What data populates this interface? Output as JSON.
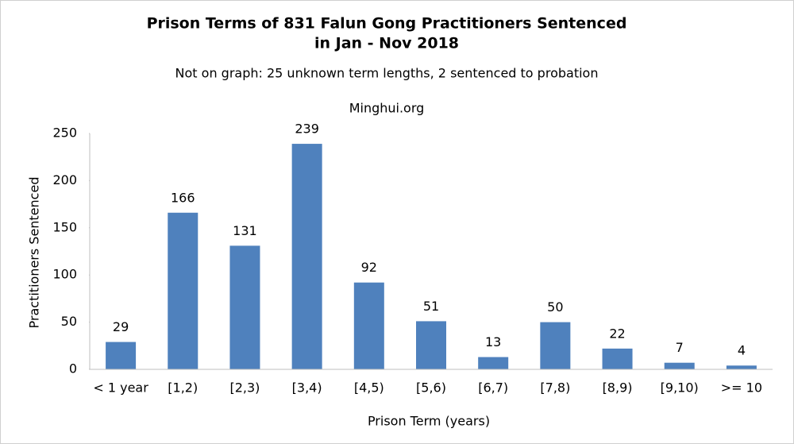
{
  "chart_data": {
    "type": "bar",
    "title": [
      "Prison Terms of 831 Falun Gong Practitioners Sentenced",
      "in Jan - Nov 2018"
    ],
    "subtitle": "Not on graph: 25 unknown term lengths, 2 sentenced to probation",
    "annotation": "Minghui.org",
    "x_label": "Prison Term (years)",
    "y_label": "Practitioners Sentenced",
    "categories": [
      "< 1 year",
      "[1,2)",
      "[2,3)",
      "[3,4)",
      "[4,5)",
      "[5,6)",
      "[6,7)",
      "[7,8)",
      "[8,9)",
      "[9,10)",
      ">= 10"
    ],
    "values": [
      29,
      166,
      131,
      239,
      92,
      51,
      13,
      50,
      22,
      7,
      4
    ],
    "color": "#4f81bd",
    "ylim": [
      0,
      250
    ],
    "yticks": [
      0,
      50,
      100,
      150,
      200,
      250
    ],
    "grid": false
  }
}
